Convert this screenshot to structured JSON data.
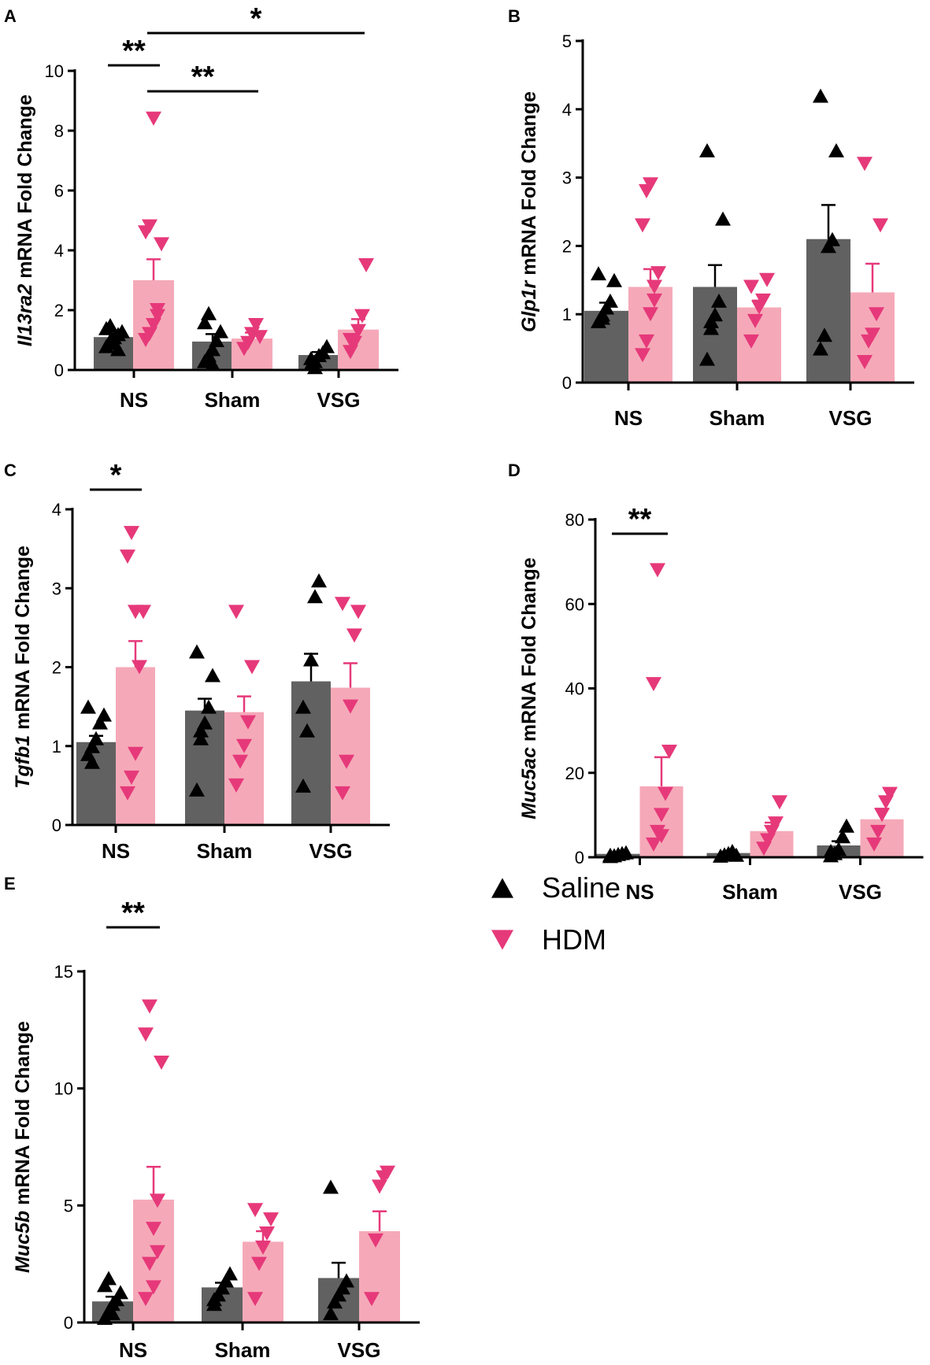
{
  "colors": {
    "saline": "#000000",
    "saline_bar": "#616161",
    "hdm": "#e6397a",
    "hdm_bar": "#f5a9b8",
    "axis": "#000000"
  },
  "legend": [
    {
      "label": "Saline",
      "marker": "up-triangle",
      "color": "#000000"
    },
    {
      "label": "HDM",
      "marker": "down-triangle",
      "color": "#e6397a"
    }
  ],
  "chart_data": [
    {
      "panel": "A",
      "type": "bar",
      "gene": "Il13ra2",
      "ylabel_suffix": " mRNA Fold Change",
      "categories": [
        "NS",
        "Sham",
        "VSG"
      ],
      "ylim": [
        0,
        10
      ],
      "yticks": [
        0,
        2,
        4,
        6,
        8,
        10
      ],
      "series": [
        {
          "name": "Saline",
          "values": [
            1.1,
            0.95,
            0.5
          ],
          "sem": [
            0.1,
            0.25,
            0.1
          ],
          "points": [
            [
              0.8,
              1.0,
              1.1,
              1.2,
              1.3,
              1.4,
              1.5,
              0.9,
              0.7
            ],
            [
              0.3,
              0.5,
              0.7,
              1.0,
              1.3,
              1.6,
              1.9,
              0.2
            ],
            [
              0.2,
              0.3,
              0.5,
              0.6,
              0.8,
              0.4,
              0.1
            ]
          ]
        },
        {
          "name": "HDM",
          "values": [
            3.0,
            1.05,
            1.35
          ],
          "sem": [
            0.7,
            0.2,
            0.35
          ],
          "points": [
            [
              1.0,
              1.2,
              1.5,
              2.0,
              4.2,
              4.6,
              4.8,
              8.4,
              1.8
            ],
            [
              0.7,
              0.9,
              1.2,
              1.5,
              1.1
            ],
            [
              0.6,
              0.9,
              1.3,
              1.8,
              3.5,
              1.0
            ]
          ]
        }
      ],
      "significance": [
        {
          "from": "NS-Saline",
          "to": "NS-HDM",
          "label": "**"
        },
        {
          "from": "NS-HDM",
          "to": "Sham-HDM",
          "label": "**"
        },
        {
          "from": "NS-HDM",
          "to": "VSG-HDM",
          "label": "*"
        }
      ]
    },
    {
      "panel": "B",
      "type": "bar",
      "gene": "Glp1r",
      "ylabel_suffix": " mRNA Fold Change",
      "categories": [
        "NS",
        "Sham",
        "VSG"
      ],
      "ylim": [
        0,
        5
      ],
      "yticks": [
        0,
        1,
        2,
        3,
        4,
        5
      ],
      "series": [
        {
          "name": "Saline",
          "values": [
            1.05,
            1.4,
            2.1
          ],
          "sem": [
            0.12,
            0.32,
            0.5
          ],
          "points": [
            [
              0.9,
              1.0,
              1.1,
              1.2,
              1.5,
              1.6,
              0.95
            ],
            [
              0.35,
              0.9,
              1.0,
              1.2,
              2.4,
              3.4,
              0.8
            ],
            [
              0.5,
              0.7,
              2.0,
              2.1,
              3.4,
              4.2
            ]
          ]
        },
        {
          "name": "HDM",
          "values": [
            1.4,
            1.1,
            1.32
          ],
          "sem": [
            0.26,
            0.1,
            0.42
          ],
          "points": [
            [
              0.4,
              0.6,
              1.0,
              1.4,
              1.6,
              2.3,
              2.8,
              2.9,
              1.2
            ],
            [
              0.6,
              0.9,
              1.1,
              1.2,
              1.5,
              1.4
            ],
            [
              0.3,
              0.6,
              0.7,
              1.0,
              2.3,
              3.2
            ]
          ]
        }
      ],
      "significance": []
    },
    {
      "panel": "C",
      "type": "bar",
      "gene": "Tgfb1",
      "ylabel_suffix": " mRNA Fold Change",
      "categories": [
        "NS",
        "Sham",
        "VSG"
      ],
      "ylim": [
        0,
        4
      ],
      "yticks": [
        0,
        1,
        2,
        3,
        4
      ],
      "series": [
        {
          "name": "Saline",
          "values": [
            1.05,
            1.45,
            1.82
          ],
          "sem": [
            0.08,
            0.15,
            0.35
          ],
          "points": [
            [
              0.9,
              1.0,
              1.1,
              1.3,
              1.4,
              1.5,
              0.8
            ],
            [
              0.45,
              1.1,
              1.3,
              1.5,
              1.9,
              2.2,
              1.2
            ],
            [
              0.5,
              1.2,
              2.1,
              2.9,
              3.1,
              1.5
            ]
          ]
        },
        {
          "name": "HDM",
          "values": [
            2.0,
            1.43,
            1.74
          ],
          "sem": [
            0.33,
            0.2,
            0.31
          ],
          "points": [
            [
              0.4,
              0.6,
              0.9,
              2.0,
              2.7,
              3.4,
              3.7,
              2.7
            ],
            [
              0.5,
              0.8,
              1.0,
              1.3,
              2.0,
              2.7
            ],
            [
              0.4,
              0.8,
              1.5,
              2.4,
              2.7,
              2.8
            ]
          ]
        }
      ],
      "significance": [
        {
          "from": "NS-Saline",
          "to": "NS-HDM",
          "label": "*"
        }
      ]
    },
    {
      "panel": "D",
      "type": "bar",
      "gene": "Muc5ac",
      "ylabel_suffix": " mRNA Fold Change",
      "categories": [
        "NS",
        "Sham",
        "VSG"
      ],
      "ylim": [
        0,
        80
      ],
      "yticks": [
        0,
        20,
        40,
        60,
        80
      ],
      "series": [
        {
          "name": "Saline",
          "values": [
            0.8,
            1.0,
            2.8
          ],
          "sem": [
            0.3,
            0.3,
            1.0
          ],
          "points": [
            [
              0.3,
              0.5,
              0.8,
              1.0,
              1.2,
              0.6
            ],
            [
              0.4,
              0.7,
              1.0,
              1.5,
              0.6
            ],
            [
              0.5,
              1.0,
              2.0,
              5.0,
              7.5,
              1.5
            ]
          ]
        },
        {
          "name": "HDM",
          "values": [
            16.8,
            6.2,
            9.0
          ],
          "sem": [
            6.9,
            2.0,
            2.5
          ],
          "points": [
            [
              3,
              6,
              10,
              15,
              25,
              41,
              68,
              5
            ],
            [
              2,
              4,
              6,
              8,
              13
            ],
            [
              3,
              6,
              10,
              13,
              15
            ]
          ]
        }
      ],
      "significance": [
        {
          "from": "NS-Saline",
          "to": "NS-HDM",
          "label": "**"
        }
      ]
    },
    {
      "panel": "E",
      "type": "bar",
      "gene": "Muc5b",
      "ylabel_suffix": " mRNA Fold Change",
      "categories": [
        "NS",
        "Sham",
        "VSG"
      ],
      "ylim": [
        0,
        15
      ],
      "yticks": [
        0,
        5,
        10,
        15
      ],
      "series": [
        {
          "name": "Saline",
          "values": [
            0.9,
            1.5,
            1.9
          ],
          "sem": [
            0.2,
            0.2,
            0.65
          ],
          "points": [
            [
              0.2,
              0.5,
              0.8,
              1.0,
              1.3,
              1.6,
              1.9,
              0.4
            ],
            [
              0.8,
              1.2,
              1.5,
              1.8,
              2.1,
              1.0
            ],
            [
              0.4,
              0.9,
              1.2,
              1.5,
              1.8,
              5.8
            ]
          ]
        },
        {
          "name": "HDM",
          "values": [
            5.25,
            3.45,
            3.9
          ],
          "sem": [
            1.4,
            0.45,
            0.85
          ],
          "points": [
            [
              1.0,
              2.5,
              4.0,
              5.2,
              11.1,
              12.3,
              13.5,
              1.5,
              3.0
            ],
            [
              1.0,
              2.5,
              3.2,
              3.8,
              4.4,
              4.8
            ],
            [
              1.0,
              3.5,
              5.8,
              6.2,
              6.4
            ]
          ]
        }
      ],
      "significance": [
        {
          "from": "NS-Saline",
          "to": "NS-HDM",
          "label": "**"
        }
      ]
    }
  ]
}
